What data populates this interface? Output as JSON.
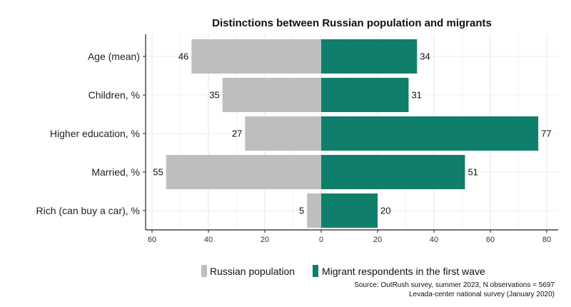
{
  "chart_data": {
    "type": "bar",
    "orientation": "horizontal-diverging",
    "title": "Distinctions between Russian population and migrants",
    "categories": [
      "Age (mean)",
      "Children, %",
      "Higher education, %",
      "Married, %",
      "Rich (can buy a car), %"
    ],
    "series": [
      {
        "name": "Russian population",
        "values": [
          46,
          35,
          27,
          55,
          5
        ],
        "color": "#bebebe",
        "direction": "left"
      },
      {
        "name": "Migrant respondents in the first wave",
        "values": [
          34,
          31,
          77,
          51,
          20
        ],
        "color": "#0f7f6c",
        "direction": "right"
      }
    ],
    "x_ticks": [
      "60",
      "40",
      "20",
      "0",
      "20",
      "40",
      "60",
      "80"
    ],
    "xlim": [
      -60,
      80
    ],
    "grid": true,
    "legend": "bottom"
  },
  "source_lines": [
    "Source: OutRush survey, summer 2023, N observations = 5697",
    "Levada-center national survey (January 2020)"
  ]
}
